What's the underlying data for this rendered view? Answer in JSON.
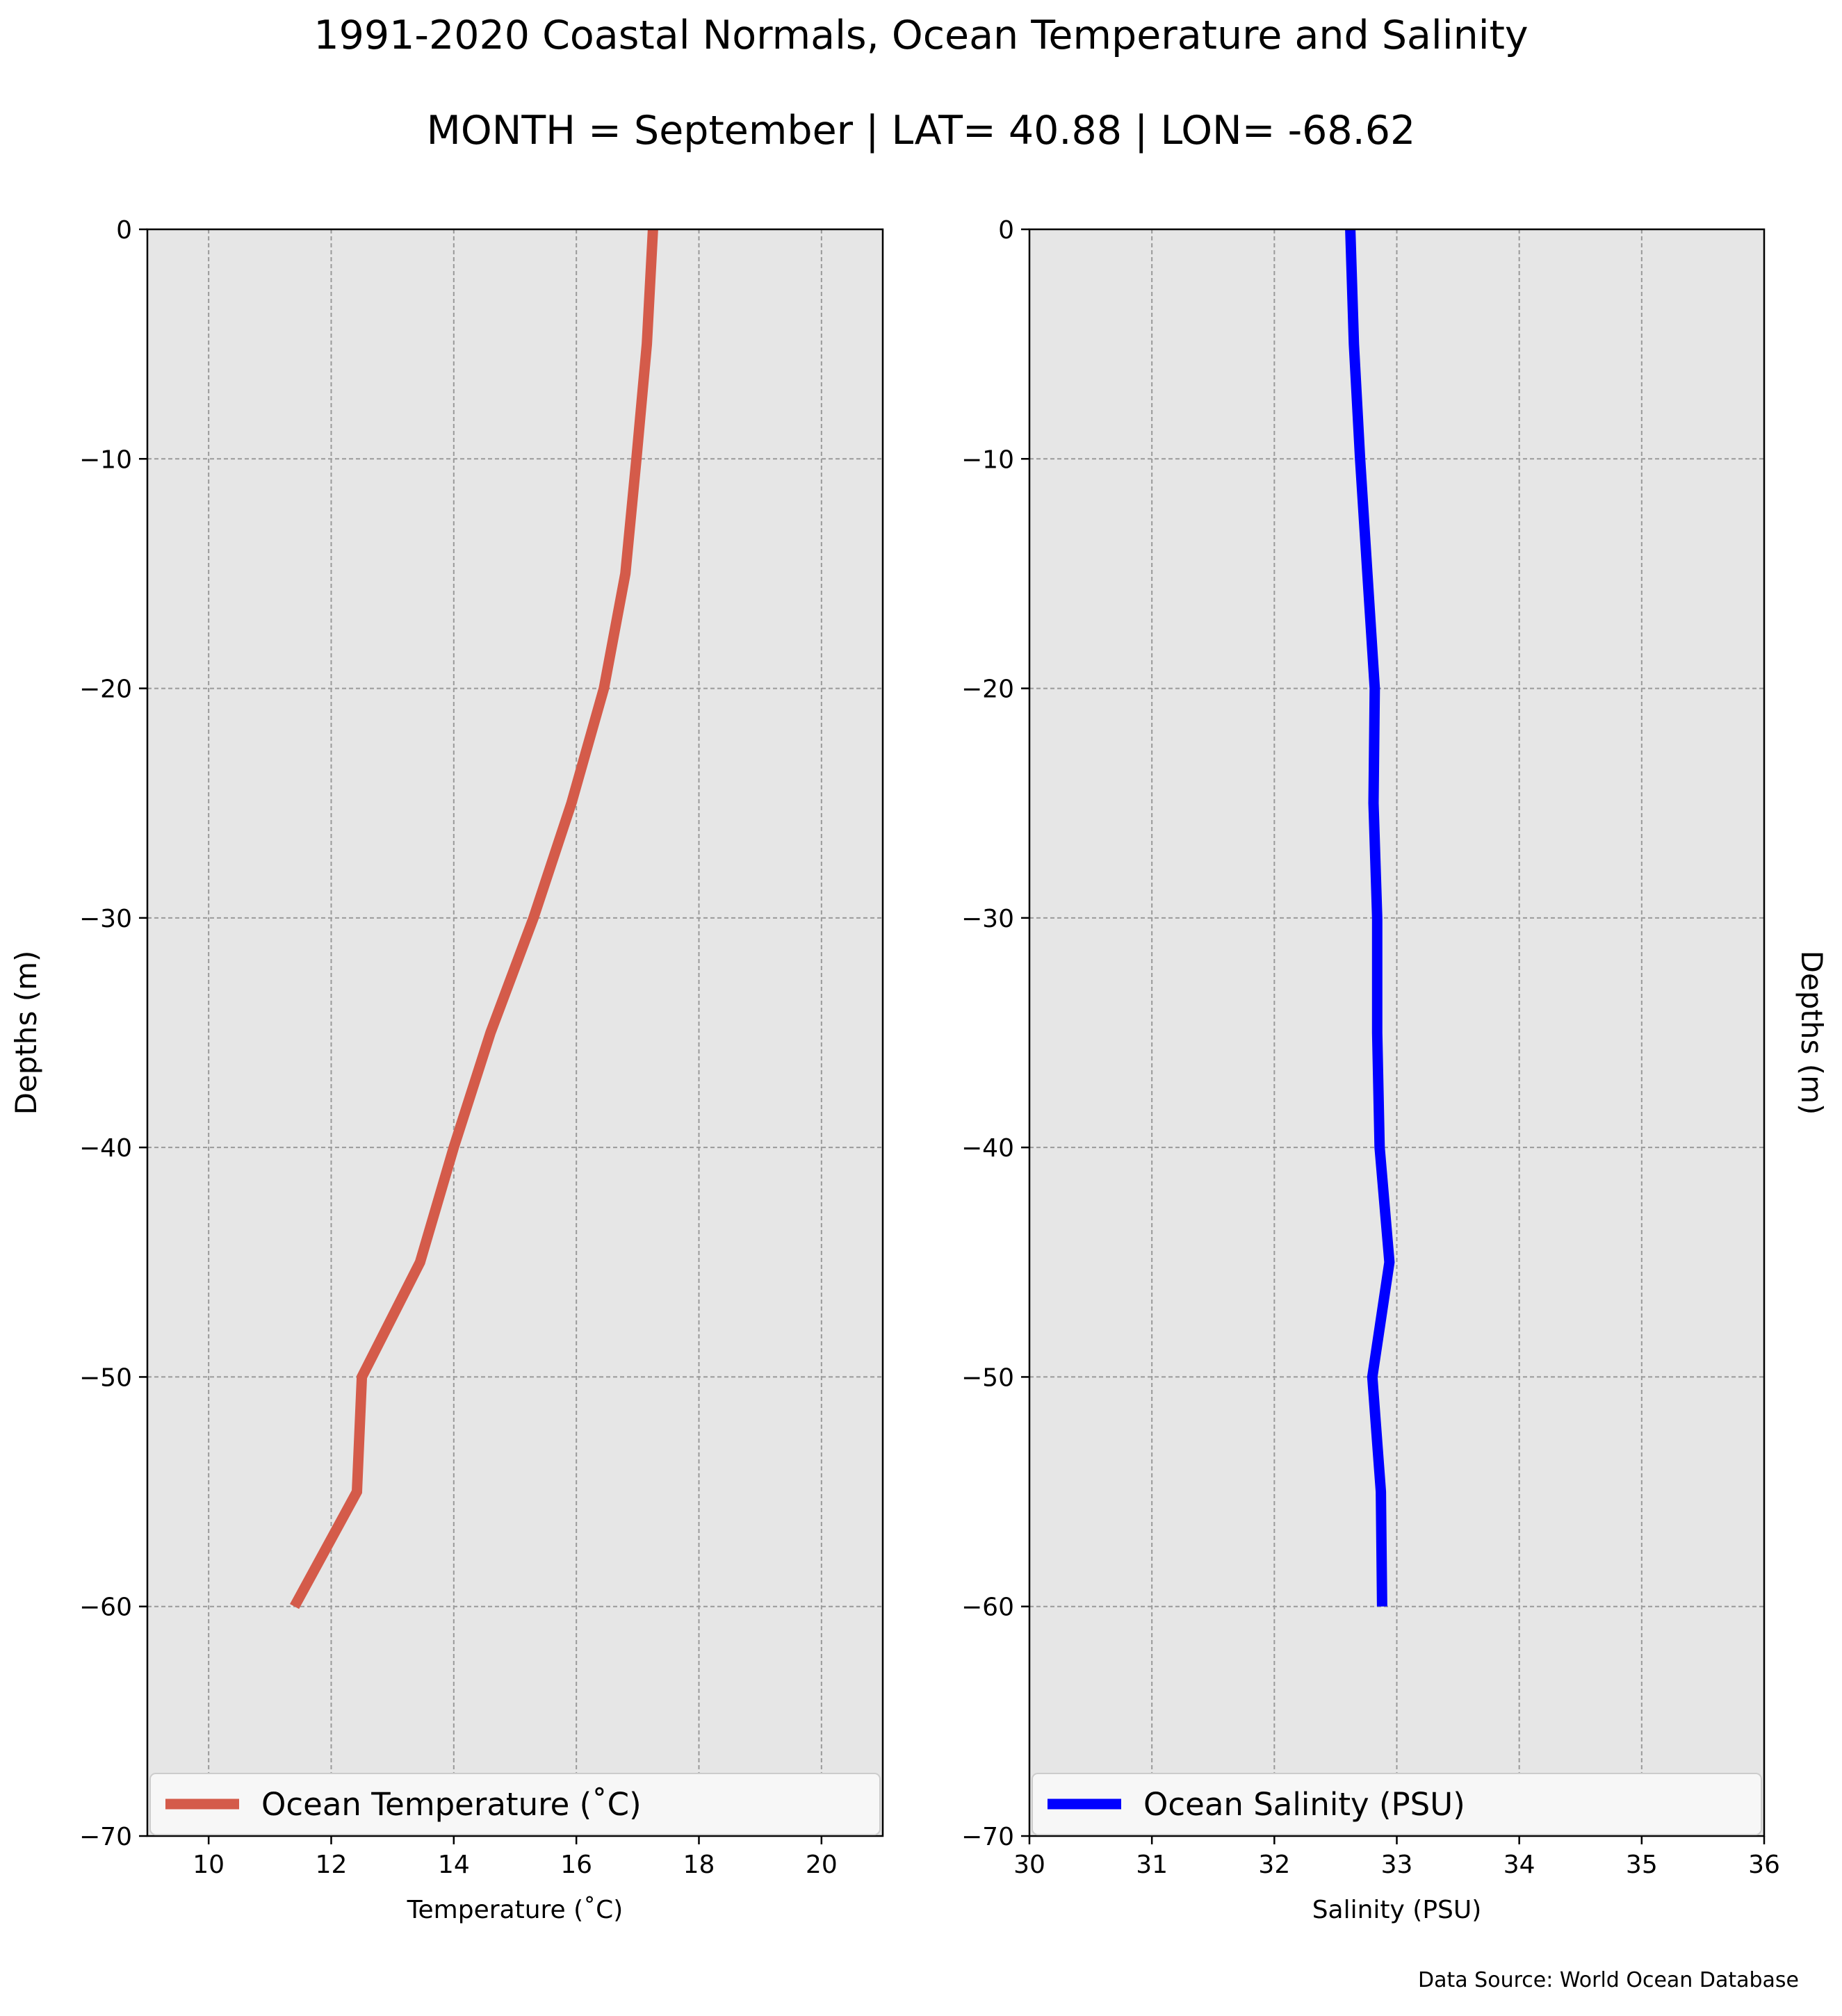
{
  "title": "1991-2020 Coastal Normals, Ocean Temperature and Salinity",
  "subtitle": "MONTH = September | LAT= 40.88 | LON= -68.62",
  "source": "Data Source: World Ocean Database",
  "chart_data": [
    {
      "type": "line",
      "xlabel": "Temperature ($^\\circ$C)",
      "xlabel_display": "Temperature (˚C)",
      "ylabel": "Depths (m)",
      "xlim": [
        9,
        21
      ],
      "ylim": [
        -70,
        0
      ],
      "xticks": [
        10,
        12,
        14,
        16,
        18,
        20
      ],
      "yticks": [
        0,
        -10,
        -20,
        -30,
        -40,
        -50,
        -60,
        -70
      ],
      "grid": true,
      "legend_position": "bottom",
      "series": [
        {
          "name": "Ocean Temperature (˚C)",
          "color": "#d45b4a",
          "x": [
            17.25,
            17.15,
            16.98,
            16.8,
            16.45,
            15.92,
            15.3,
            14.6,
            14.0,
            13.45,
            12.5,
            12.42,
            11.4
          ],
          "y": [
            0,
            -5,
            -10,
            -15,
            -20,
            -25,
            -30,
            -35,
            -40,
            -45,
            -50,
            -55,
            -60
          ]
        }
      ]
    },
    {
      "type": "line",
      "xlabel": "Salinity (PSU)",
      "ylabel": "Depths (m)",
      "xlim": [
        30,
        36
      ],
      "ylim": [
        -70,
        0
      ],
      "xticks": [
        30,
        31,
        32,
        33,
        34,
        35,
        36
      ],
      "yticks": [
        0,
        -10,
        -20,
        -30,
        -40,
        -50,
        -60,
        -70
      ],
      "grid": true,
      "legend_position": "bottom",
      "series": [
        {
          "name": "Ocean Salinity (PSU)",
          "color": "#0000ff",
          "x": [
            32.62,
            32.65,
            32.7,
            32.76,
            32.82,
            32.81,
            32.84,
            32.84,
            32.86,
            32.94,
            32.8,
            32.87,
            32.88
          ],
          "y": [
            0,
            -5,
            -10,
            -15,
            -20,
            -25,
            -30,
            -35,
            -40,
            -45,
            -50,
            -55,
            -60
          ]
        }
      ]
    }
  ]
}
